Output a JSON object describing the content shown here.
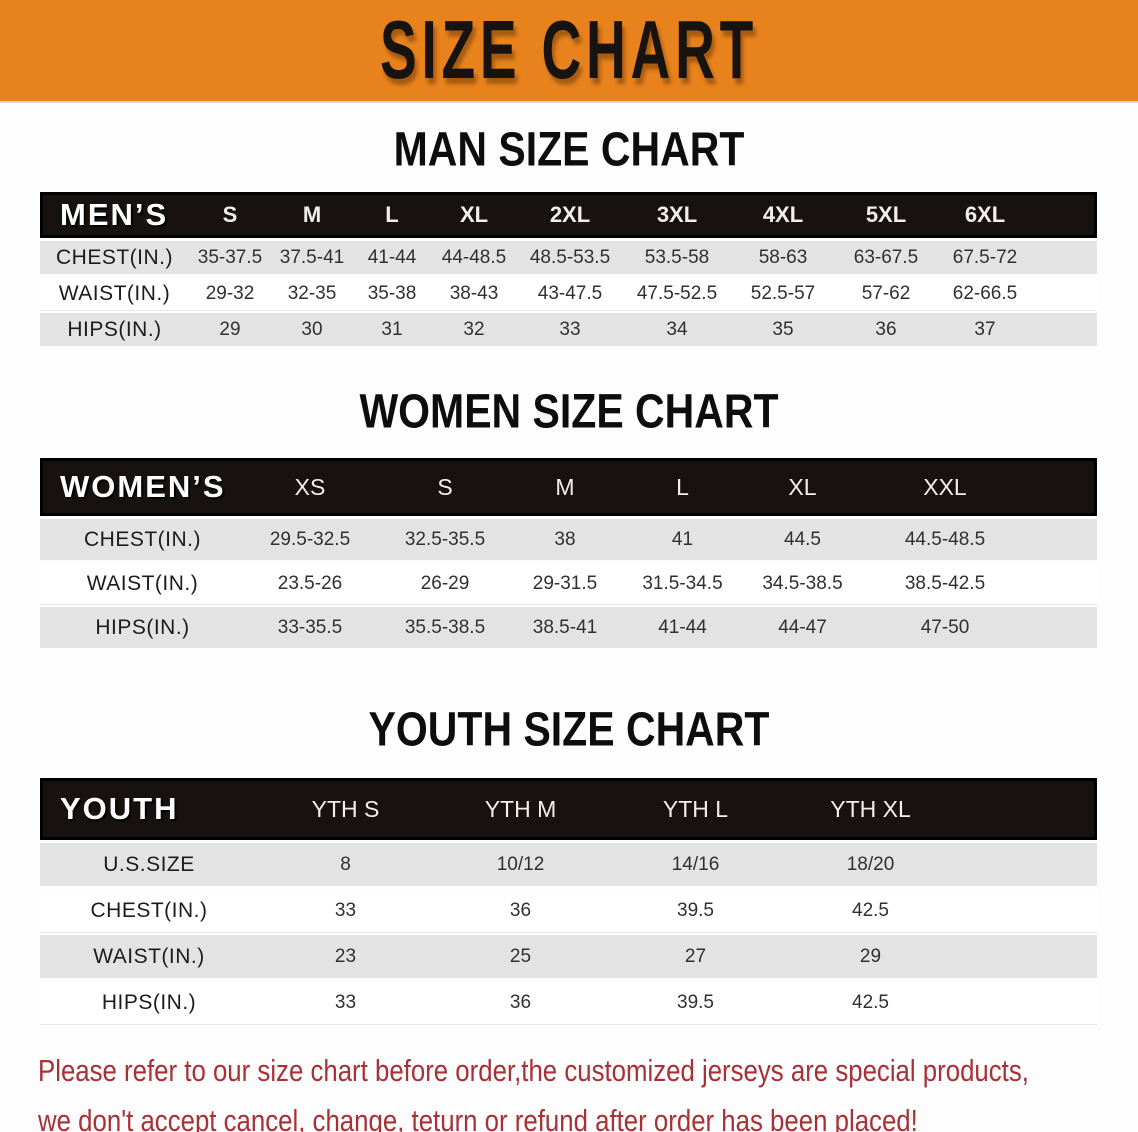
{
  "banner": {
    "title": "SIZE CHART"
  },
  "theme": {
    "banner_bg": "#E8821C",
    "banner_text": "#171310",
    "header_bar_bg": "#17120F",
    "header_bar_text": "#FFFFFF",
    "row_alt_bg": "#E3E3E3",
    "row_base_bg": "#FFFFFF",
    "cell_text": "#303030",
    "notice_text": "#A93136"
  },
  "sections": [
    {
      "title": "MAN SIZE CHART",
      "header_label": "MEN’S",
      "columns": [
        "S",
        "M",
        "L",
        "XL",
        "2XL",
        "3XL",
        "4XL",
        "5XL",
        "6XL"
      ],
      "rows": [
        {
          "label": "CHEST(IN.)",
          "values": [
            "35-37.5",
            "37.5-41",
            "41-44",
            "44-48.5",
            "48.5-53.5",
            "53.5-58",
            "58-63",
            "63-67.5",
            "67.5-72"
          ]
        },
        {
          "label": "WAIST(IN.)",
          "values": [
            "29-32",
            "32-35",
            "35-38",
            "38-43",
            "43-47.5",
            "47.5-52.5",
            "52.5-57",
            "57-62",
            "62-66.5"
          ]
        },
        {
          "label": "HIPS(IN.)",
          "values": [
            "29",
            "30",
            "31",
            "32",
            "33",
            "34",
            "35",
            "36",
            "37"
          ]
        }
      ]
    },
    {
      "title": "WOMEN SIZE CHART",
      "header_label": "WOMEN’S",
      "columns": [
        "XS",
        "S",
        "M",
        "L",
        "XL",
        "XXL"
      ],
      "rows": [
        {
          "label": "CHEST(IN.)",
          "values": [
            "29.5-32.5",
            "32.5-35.5",
            "38",
            "41",
            "44.5",
            "44.5-48.5"
          ]
        },
        {
          "label": "WAIST(IN.)",
          "values": [
            "23.5-26",
            "26-29",
            "29-31.5",
            "31.5-34.5",
            "34.5-38.5",
            "38.5-42.5"
          ]
        },
        {
          "label": "HIPS(IN.)",
          "values": [
            "33-35.5",
            "35.5-38.5",
            "38.5-41",
            "41-44",
            "44-47",
            "47-50"
          ]
        }
      ]
    },
    {
      "title": "YOUTH SIZE CHART",
      "header_label": "YOUTH",
      "columns": [
        "YTH S",
        "YTH M",
        "YTH L",
        "YTH XL"
      ],
      "rows": [
        {
          "label": "U.S.SIZE",
          "values": [
            "8",
            "10/12",
            "14/16",
            "18/20"
          ]
        },
        {
          "label": "CHEST(IN.)",
          "values": [
            "33",
            "36",
            "39.5",
            "42.5"
          ]
        },
        {
          "label": "WAIST(IN.)",
          "values": [
            "23",
            "25",
            "27",
            "29"
          ]
        },
        {
          "label": "HIPS(IN.)",
          "values": [
            "33",
            "36",
            "39.5",
            "42.5"
          ]
        }
      ]
    }
  ],
  "notice": {
    "line1": "Please refer to our size chart before order,the customized jerseys are special products,",
    "line2": "we don't accept cancel, change, teturn or refund after order has been placed!"
  }
}
